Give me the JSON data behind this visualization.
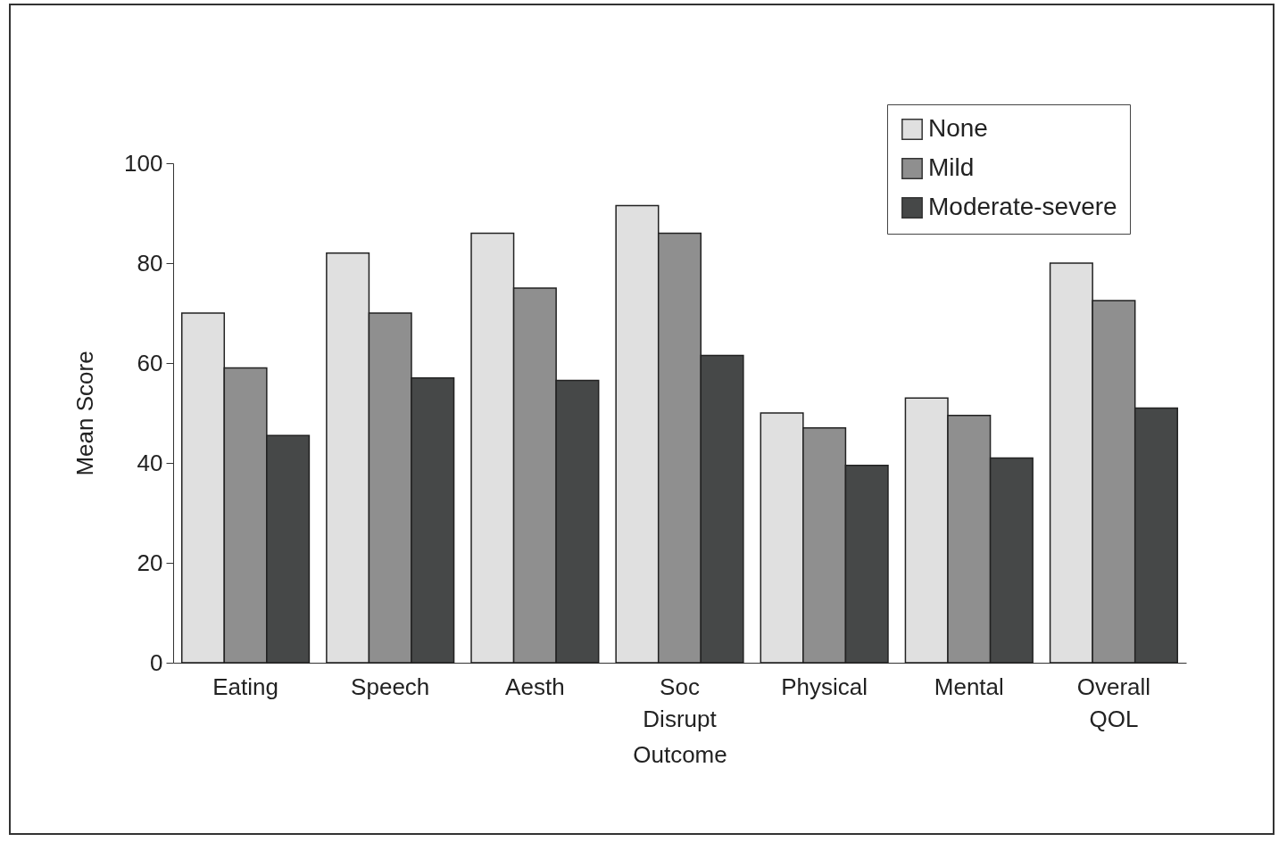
{
  "chart_data": {
    "type": "bar",
    "xlabel": "Outcome",
    "ylabel": "Mean Score",
    "categories": [
      "Eating",
      "Speech",
      "Aesth",
      "Soc Disrupt",
      "Physical",
      "Mental",
      "Overall QOL"
    ],
    "series": [
      {
        "name": "None",
        "color": "#e0e0e0",
        "values": [
          70,
          82,
          86,
          91.5,
          50,
          53,
          80
        ]
      },
      {
        "name": "Mild",
        "color": "#8f8f8f",
        "values": [
          59,
          70,
          75,
          86,
          47,
          49.5,
          72.5
        ]
      },
      {
        "name": "Moderate-severe",
        "color": "#464848",
        "values": [
          45.5,
          57,
          56.5,
          61.5,
          39.5,
          41,
          51
        ]
      }
    ],
    "ylim": [
      0,
      100
    ],
    "yticks": [
      0,
      20,
      40,
      60,
      80,
      100
    ],
    "grid": false,
    "legend": "top right"
  }
}
